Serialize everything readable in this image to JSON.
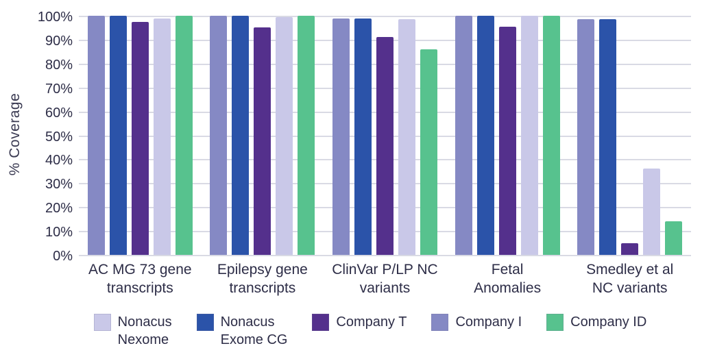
{
  "page": {
    "background": "#ffffff"
  },
  "colors": {
    "text": "#2d2d47",
    "gridline": "#d9dae4",
    "nonacus_nexome": "#c9c8e8",
    "nonacus_exome_cg": "#2b53a9",
    "company_t": "#54308c",
    "company_i": "#8589c4",
    "company_id": "#57c28e"
  },
  "chart_data": {
    "type": "bar",
    "title": "",
    "xlabel": "",
    "ylabel": "% Coverage",
    "ylim": [
      0,
      100
    ],
    "grid": true,
    "legend_position": "bottom",
    "y_ticks": [
      "0%",
      "10%",
      "20%",
      "30%",
      "40%",
      "50%",
      "60%",
      "70%",
      "80%",
      "90%",
      "100%"
    ],
    "categories": [
      "AC MG 73 gene\ntranscripts",
      "Epilepsy gene\ntranscripts",
      "ClinVar P/LP NC\nvariants",
      "Fetal\nAnomalies",
      "Smedley et al\nNC variants"
    ],
    "series": [
      {
        "name": "Company I",
        "color": "#8589c4",
        "values": [
          100,
          100,
          99,
          100,
          98.5
        ]
      },
      {
        "name": "Nonacus Exome CG",
        "color": "#2b53a9",
        "values": [
          100,
          100,
          99,
          100,
          98.5
        ]
      },
      {
        "name": "Company T",
        "color": "#54308c",
        "values": [
          97.5,
          95,
          91,
          95.5,
          5
        ]
      },
      {
        "name": "Nonacus Nexome",
        "color": "#c9c8e8",
        "values": [
          99,
          99.5,
          98.5,
          100,
          36
        ]
      },
      {
        "name": "Company ID",
        "color": "#57c28e",
        "values": [
          100,
          100,
          86,
          100,
          14
        ]
      }
    ],
    "legend": [
      {
        "label": "Nonacus\nNexome",
        "color": "#c9c8e8"
      },
      {
        "label": "Nonacus\nExome CG",
        "color": "#2b53a9"
      },
      {
        "label": "Company T",
        "color": "#54308c"
      },
      {
        "label": "Company I",
        "color": "#8589c4"
      },
      {
        "label": "Company ID",
        "color": "#57c28e"
      }
    ]
  }
}
